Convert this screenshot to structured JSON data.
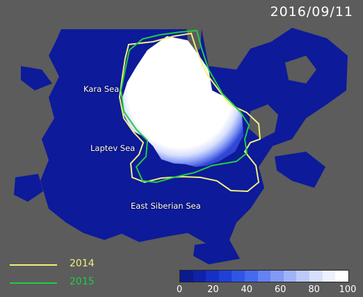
{
  "date": "2016/09/11",
  "regions": {
    "kara": "Kara Sea",
    "laptev": "Laptev Sea",
    "east_siberian": "East Siberian Sea"
  },
  "legend": [
    {
      "year": "2014",
      "color": "#f4f07a"
    },
    {
      "year": "2015",
      "color": "#22cc44"
    }
  ],
  "colorbar": {
    "ticks": [
      "0",
      "20",
      "40",
      "60",
      "80",
      "100"
    ],
    "colors": [
      "#0b1a8f",
      "#0f22a8",
      "#1630c6",
      "#2040d8",
      "#2f55e6",
      "#466aee",
      "#6482f3",
      "#8299f6",
      "#a0b2f8",
      "#bccaf9",
      "#d7e0fb",
      "#eef2fe",
      "#ffffff"
    ]
  },
  "colors": {
    "ocean": "#0d1a9a",
    "land": "#5c5c5c",
    "ice": "#ffffff"
  }
}
